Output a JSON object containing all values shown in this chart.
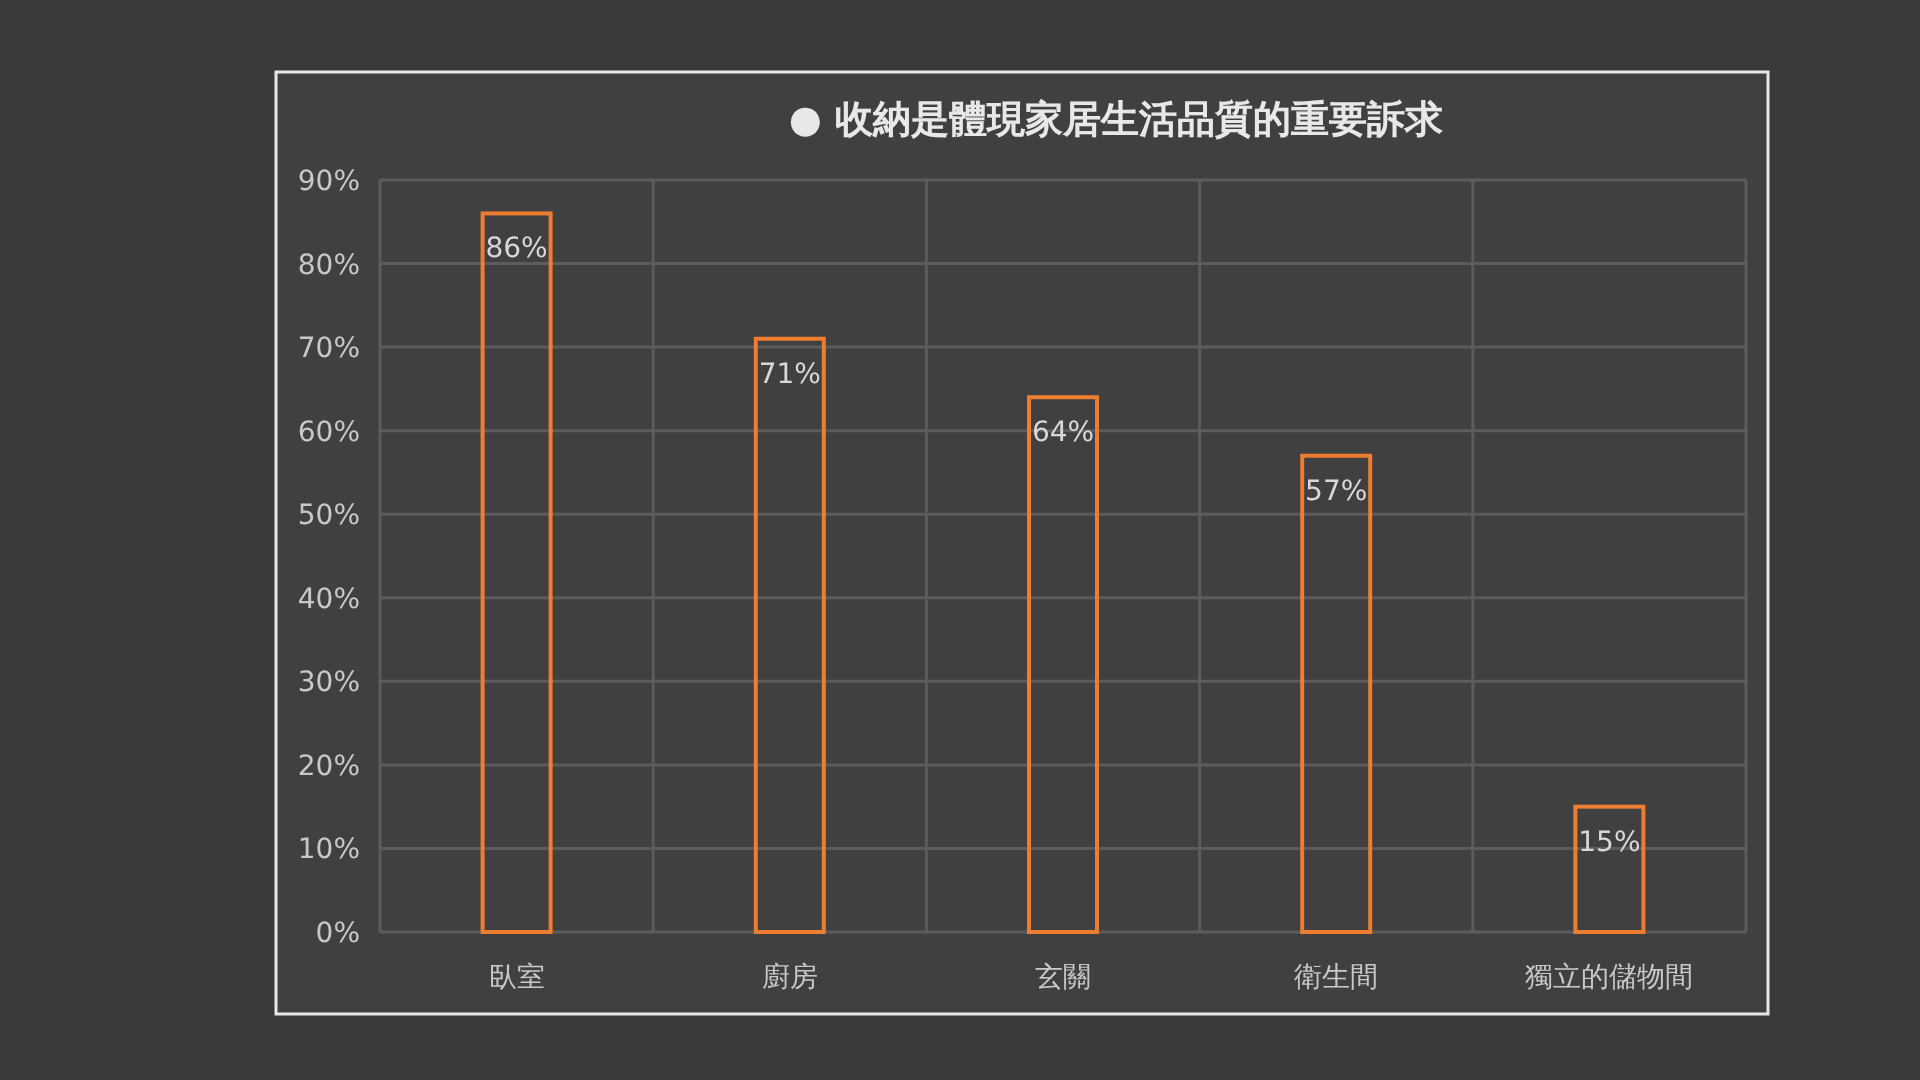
{
  "chart_data": {
    "type": "bar",
    "title": "● 收納是體現家居生活品質的重要訴求",
    "categories": [
      "臥室",
      "廚房",
      "玄關",
      "衛生間",
      "獨立的儲物間"
    ],
    "values": [
      86,
      71,
      64,
      57,
      15
    ],
    "value_labels": [
      "86%",
      "71%",
      "64%",
      "57%",
      "15%"
    ],
    "color": "#ed7d31",
    "ylim": [
      0,
      90
    ],
    "yticks": [
      {
        "value": 0,
        "label": "0%"
      },
      {
        "value": 10,
        "label": "10%"
      },
      {
        "value": 20,
        "label": "20%"
      },
      {
        "value": 30,
        "label": "30%"
      },
      {
        "value": 40,
        "label": "40%"
      },
      {
        "value": 50,
        "label": "50%"
      },
      {
        "value": 60,
        "label": "60%"
      },
      {
        "value": 70,
        "label": "70%"
      },
      {
        "value": 80,
        "label": "80%"
      },
      {
        "value": 90,
        "label": "90%"
      }
    ],
    "grid": true
  }
}
